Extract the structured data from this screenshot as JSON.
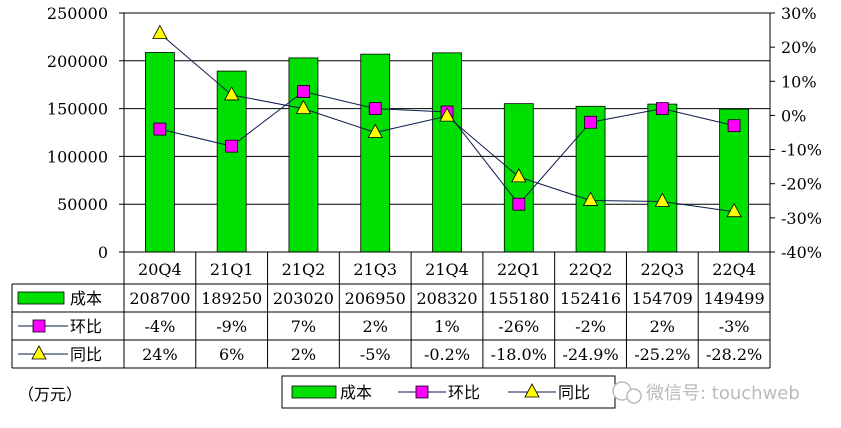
{
  "chart_data": {
    "type": "bar",
    "categories": [
      "20Q4",
      "21Q1",
      "21Q2",
      "21Q3",
      "21Q4",
      "22Q1",
      "22Q2",
      "22Q3",
      "22Q4"
    ],
    "unit_label": "（万元）",
    "watermark": "微信号: touchweb",
    "y_left": {
      "min": 0,
      "max": 250000,
      "ticks": [
        "0",
        "50000",
        "100000",
        "150000",
        "200000",
        "250000"
      ]
    },
    "y_right": {
      "min": -40,
      "max": 30,
      "ticks": [
        "-40%",
        "-30%",
        "-20%",
        "-10%",
        "0%",
        "10%",
        "20%",
        "30%"
      ]
    },
    "grid": "horizontal",
    "legend_position": "bottom",
    "bar_color": "#00e000",
    "series": [
      {
        "name": "成本",
        "kind": "bar",
        "axis": "left",
        "color": "#00e000",
        "values": [
          208700,
          189250,
          203020,
          206950,
          208320,
          155180,
          152416,
          154709,
          149499
        ],
        "labels": [
          "208700",
          "189250",
          "203020",
          "206950",
          "208320",
          "155180",
          "152416",
          "154709",
          "149499"
        ]
      },
      {
        "name": "环比",
        "kind": "line",
        "marker": "square",
        "axis": "right",
        "color": "#ff00ff",
        "values": [
          -4,
          -9,
          7,
          2,
          1,
          -26,
          -2,
          2,
          -3
        ],
        "labels": [
          "-4%",
          "-9%",
          "7%",
          "2%",
          "1%",
          "-26%",
          "-2%",
          "2%",
          "-3%"
        ]
      },
      {
        "name": "同比",
        "kind": "line",
        "marker": "triangle",
        "axis": "right",
        "color": "#ffff00",
        "values": [
          24,
          6,
          2,
          -5,
          -0.2,
          -18.0,
          -24.9,
          -25.2,
          -28.2
        ],
        "labels": [
          "24%",
          "6%",
          "2%",
          "-5%",
          "-0.2%",
          "-18.0%",
          "-24.9%",
          "-25.2%",
          "-28.2%"
        ]
      }
    ]
  }
}
